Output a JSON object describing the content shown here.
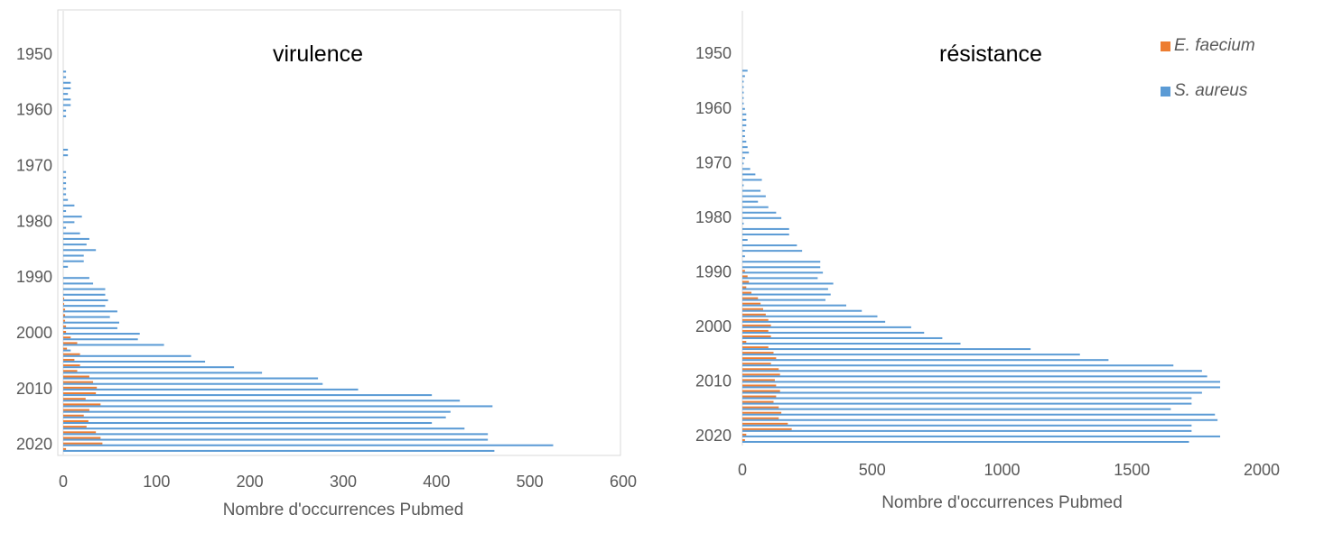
{
  "colors": {
    "faecium": "#ED7D31",
    "aureus": "#5B9BD5",
    "axis": "#D9D9D9",
    "text": "#595959"
  },
  "chart_data": [
    {
      "type": "bar",
      "orientation": "horizontal",
      "title": "virulence",
      "xlabel": "Nombre d'occurrences Pubmed",
      "xlim": [
        0,
        600
      ],
      "xticks": [
        "0",
        "100",
        "200",
        "300",
        "400",
        "500",
        "600"
      ],
      "yticks": [
        "1950",
        "1960",
        "1970",
        "1980",
        "1990",
        "2000",
        "2010",
        "2020"
      ],
      "grid": false,
      "legend": "none",
      "categories": [
        1946,
        1947,
        1948,
        1949,
        1950,
        1951,
        1952,
        1953,
        1954,
        1955,
        1956,
        1957,
        1958,
        1959,
        1960,
        1961,
        1962,
        1963,
        1964,
        1965,
        1966,
        1967,
        1968,
        1969,
        1970,
        1971,
        1972,
        1973,
        1974,
        1975,
        1976,
        1977,
        1978,
        1979,
        1980,
        1981,
        1982,
        1983,
        1984,
        1985,
        1986,
        1987,
        1988,
        1989,
        1990,
        1991,
        1992,
        1993,
        1994,
        1995,
        1996,
        1997,
        1998,
        1999,
        2000,
        2001,
        2002,
        2003,
        2004,
        2005,
        2006,
        2007,
        2008,
        2009,
        2010,
        2011,
        2012,
        2013,
        2014,
        2015,
        2016,
        2017,
        2018,
        2019,
        2020,
        2021
      ],
      "series": [
        {
          "name": "E. faecium",
          "color": "#ED7D31",
          "values": [
            0,
            0,
            0,
            0,
            0,
            0,
            0,
            0,
            0,
            0,
            0,
            0,
            0,
            0,
            0,
            0,
            0,
            0,
            0,
            0,
            0,
            0,
            0,
            0,
            0,
            0,
            0,
            0,
            0,
            0,
            0,
            0,
            0,
            0,
            0,
            0,
            0,
            0,
            0,
            0,
            0,
            0,
            0,
            0,
            0,
            0,
            0,
            0,
            1,
            1,
            2,
            2,
            2,
            3,
            3,
            8,
            15,
            4,
            18,
            12,
            18,
            15,
            28,
            32,
            36,
            35,
            24,
            40,
            28,
            22,
            27,
            25,
            35,
            40,
            42,
            3
          ]
        },
        {
          "name": "S. aureus",
          "color": "#5B9BD5",
          "values": [
            0,
            0,
            0,
            0,
            0,
            0,
            0,
            3,
            3,
            8,
            8,
            5,
            8,
            8,
            3,
            3,
            0,
            0,
            0,
            0,
            0,
            5,
            5,
            0,
            0,
            3,
            3,
            3,
            3,
            3,
            5,
            12,
            3,
            20,
            12,
            3,
            18,
            28,
            25,
            35,
            22,
            22,
            5,
            0,
            28,
            32,
            45,
            45,
            48,
            45,
            58,
            50,
            60,
            58,
            82,
            80,
            108,
            8,
            137,
            152,
            183,
            213,
            273,
            278,
            316,
            395,
            425,
            460,
            415,
            410,
            395,
            430,
            455,
            455,
            525,
            462
          ]
        }
      ]
    },
    {
      "type": "bar",
      "orientation": "horizontal",
      "title": "résistance",
      "xlabel": "Nombre d'occurrences Pubmed",
      "xlim": [
        0,
        2000
      ],
      "xticks": [
        "0",
        "500",
        "1000",
        "1500",
        "2000"
      ],
      "yticks": [
        "1950",
        "1960",
        "1970",
        "1980",
        "1990",
        "2000",
        "2010",
        "2020"
      ],
      "grid": false,
      "legend": "top-right",
      "categories": [
        1946,
        1947,
        1948,
        1949,
        1950,
        1951,
        1952,
        1953,
        1954,
        1955,
        1956,
        1957,
        1958,
        1959,
        1960,
        1961,
        1962,
        1963,
        1964,
        1965,
        1966,
        1967,
        1968,
        1969,
        1970,
        1971,
        1972,
        1973,
        1974,
        1975,
        1976,
        1977,
        1978,
        1979,
        1980,
        1981,
        1982,
        1983,
        1984,
        1985,
        1986,
        1987,
        1988,
        1989,
        1990,
        1991,
        1992,
        1993,
        1994,
        1995,
        1996,
        1997,
        1998,
        1999,
        2000,
        2001,
        2002,
        2003,
        2004,
        2005,
        2006,
        2007,
        2008,
        2009,
        2010,
        2011,
        2012,
        2013,
        2014,
        2015,
        2016,
        2017,
        2018,
        2019,
        2020,
        2021
      ],
      "series": [
        {
          "name": "E. faecium",
          "color": "#ED7D31",
          "values": [
            0,
            0,
            0,
            0,
            0,
            0,
            0,
            0,
            0,
            0,
            0,
            0,
            0,
            0,
            0,
            0,
            0,
            0,
            0,
            0,
            0,
            0,
            0,
            0,
            0,
            0,
            0,
            0,
            0,
            0,
            0,
            0,
            0,
            0,
            0,
            0,
            0,
            0,
            0,
            0,
            0,
            0,
            0,
            0,
            10,
            20,
            25,
            15,
            35,
            60,
            70,
            80,
            90,
            100,
            110,
            100,
            110,
            15,
            100,
            120,
            130,
            110,
            140,
            145,
            125,
            130,
            145,
            130,
            120,
            140,
            150,
            140,
            175,
            190,
            15,
            10
          ]
        },
        {
          "name": "S. aureus",
          "color": "#5B9BD5",
          "values": [
            0,
            0,
            0,
            0,
            0,
            0,
            0,
            20,
            10,
            5,
            5,
            5,
            5,
            5,
            10,
            15,
            15,
            15,
            10,
            10,
            15,
            20,
            25,
            10,
            5,
            30,
            50,
            75,
            5,
            70,
            90,
            60,
            100,
            130,
            150,
            5,
            180,
            180,
            20,
            210,
            230,
            10,
            300,
            300,
            310,
            290,
            350,
            330,
            340,
            320,
            400,
            460,
            520,
            550,
            650,
            700,
            770,
            840,
            1110,
            1300,
            1410,
            1660,
            1770,
            1790,
            1840,
            1840,
            1770,
            1730,
            1730,
            1650,
            1820,
            1830,
            1730,
            1730,
            1840,
            1720
          ]
        }
      ]
    }
  ],
  "legend_items": [
    {
      "label": "E. faecium",
      "color": "#ED7D31"
    },
    {
      "label": "S. aureus",
      "color": "#5B9BD5"
    }
  ]
}
